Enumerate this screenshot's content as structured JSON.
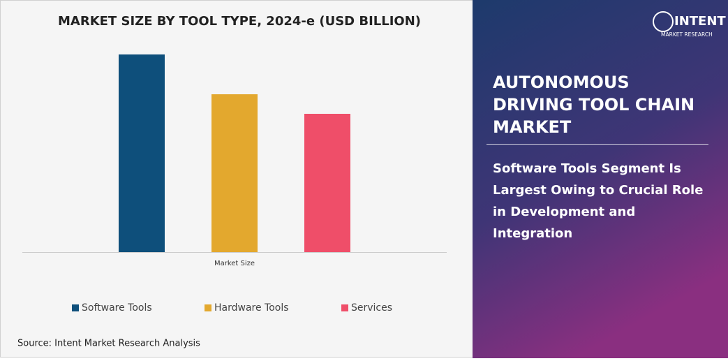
{
  "chart_data": {
    "type": "bar",
    "title": "MARKET SIZE BY TOOL TYPE, 2024-e (USD BILLION)",
    "categories": [
      "Market Size"
    ],
    "series": [
      {
        "name": "Software Tools",
        "color": "#0e4f7b",
        "values": [
          2.83
        ]
      },
      {
        "name": "Hardware Tools",
        "color": "#e3a82e",
        "values": [
          2.26
        ]
      },
      {
        "name": "Services",
        "color": "#ef4e69",
        "values": [
          1.98
        ]
      }
    ],
    "ylim": [
      0,
      2.83
    ],
    "grid": false,
    "legend": "bottom"
  },
  "panel": {
    "title_lines": [
      "AUTONOMOUS",
      "DRIVING TOOL CHAIN",
      "MARKET"
    ],
    "subtitle_lines": [
      "Software Tools Segment Is",
      "Largest Owing to Crucial Role",
      "in Development and",
      "Integration"
    ]
  },
  "logo": {
    "name": "INTENT",
    "tagline": "MARKET RESEARCH"
  },
  "source": "Source: Intent Market Research Analysis"
}
